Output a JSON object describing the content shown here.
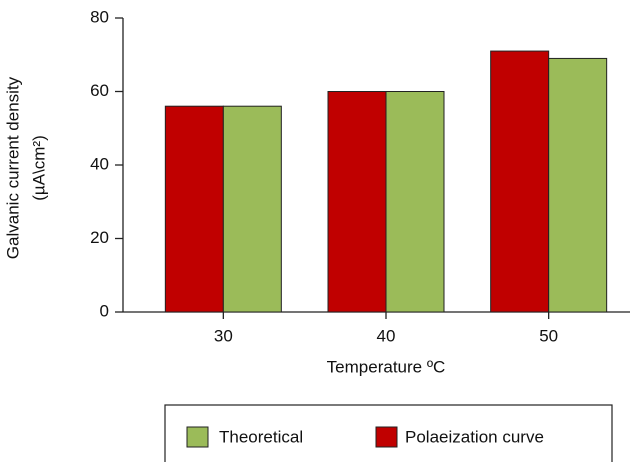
{
  "chart_data": {
    "type": "bar",
    "y_label": [
      "Galvanic current density",
      "(µA\\cm²)"
    ],
    "x_label": "Temperature ºC",
    "categories": [
      "30",
      "40",
      "50"
    ],
    "series": [
      {
        "name": "Polaeization curve",
        "color": "#c00000",
        "values": [
          56,
          60,
          71
        ]
      },
      {
        "name": "Theoretical",
        "color": "#9bbb59",
        "values": [
          56,
          60,
          69
        ]
      }
    ],
    "ylim": [
      0,
      80
    ],
    "yticks": [
      0,
      20,
      40,
      60,
      80
    ],
    "grid": false,
    "legend": "bottom"
  }
}
